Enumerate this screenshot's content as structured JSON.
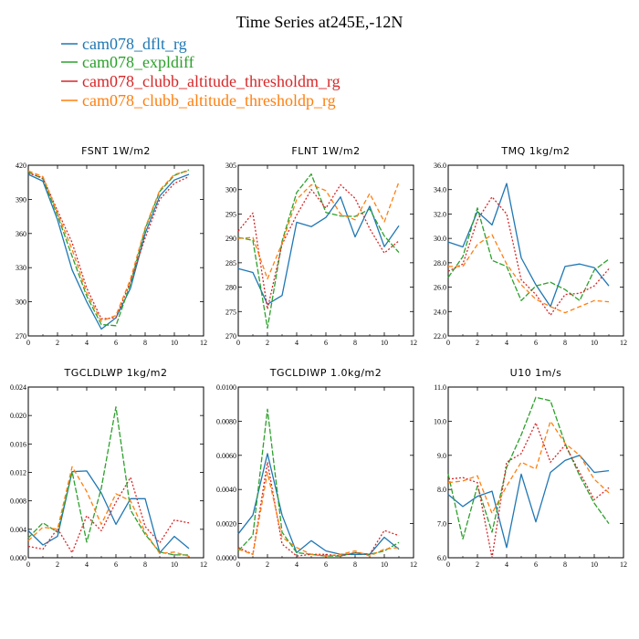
{
  "figure": {
    "title": "Time Series at245E,-12N",
    "legend": [
      {
        "label": "cam078_dflt_rg",
        "color": "#1f77b4"
      },
      {
        "label": "cam078_expldiff",
        "color": "#2ca02c"
      },
      {
        "label": "cam078_clubb_altitude_thresholdm_rg",
        "color": "#d62728"
      },
      {
        "label": "cam078_clubb_altitude_thresholdp_rg",
        "color": "#ff7f0e"
      }
    ]
  },
  "chart_data": [
    {
      "type": "line",
      "title": "FSNT   1W/m2",
      "x": [
        0,
        1,
        2,
        3,
        4,
        5,
        6,
        7,
        8,
        9,
        10,
        11
      ],
      "xlim": [
        0,
        12
      ],
      "xticks": [
        "0",
        "2",
        "4",
        "6",
        "8",
        "10",
        "12"
      ],
      "ylim": [
        270,
        420
      ],
      "yticks": [
        "270",
        "300",
        "330",
        "360",
        "390",
        "420"
      ],
      "series": [
        {
          "name": "cam078_dflt_rg",
          "values": [
            412,
            406,
            372,
            328,
            300,
            276,
            286,
            312,
            360,
            393,
            407,
            412
          ]
        },
        {
          "name": "cam078_expldiff",
          "values": [
            414,
            408,
            376,
            340,
            305,
            280,
            279,
            316,
            364,
            397,
            411,
            416
          ]
        },
        {
          "name": "cam078_clubb_altitude_thresholdm_rg",
          "values": [
            413,
            409,
            380,
            352,
            312,
            285,
            286,
            318,
            356,
            390,
            404,
            410
          ]
        },
        {
          "name": "cam078_clubb_altitude_thresholdp_rg",
          "values": [
            415,
            410,
            378,
            346,
            308,
            283,
            288,
            320,
            365,
            398,
            412,
            415
          ]
        }
      ]
    },
    {
      "type": "line",
      "title": "FLNT   1W/m2",
      "x": [
        0,
        1,
        2,
        3,
        4,
        5,
        6,
        7,
        8,
        9,
        10,
        11
      ],
      "xlim": [
        0,
        12
      ],
      "xticks": [
        "0",
        "2",
        "4",
        "6",
        "8",
        "10",
        "12"
      ],
      "ylim": [
        270,
        305
      ],
      "yticks": [
        "270",
        "275",
        "280",
        "285",
        "290",
        "295",
        "300",
        "305"
      ],
      "series": [
        {
          "name": "cam078_dflt_rg",
          "values": [
            283.8,
            283,
            276.5,
            278.3,
            293.3,
            292.4,
            294.3,
            298.5,
            290.3,
            296.6,
            288.3,
            292.6
          ]
        },
        {
          "name": "cam078_expldiff",
          "values": [
            290.2,
            289.6,
            271.6,
            289.4,
            299.4,
            303.2,
            295.3,
            294.6,
            294.5,
            296,
            290.5,
            287.1
          ]
        },
        {
          "name": "cam078_clubb_altitude_thresholdm_rg",
          "values": [
            291.5,
            295.2,
            275.5,
            288.8,
            294.8,
            300,
            296.2,
            301,
            298.2,
            292,
            287,
            289.5
          ]
        },
        {
          "name": "cam078_clubb_altitude_thresholdp_rg",
          "values": [
            290,
            290.2,
            281.7,
            289,
            298,
            301,
            299.8,
            295,
            293.8,
            299.2,
            293.4,
            301.6
          ]
        }
      ]
    },
    {
      "type": "line",
      "title": "TMQ   1kg/m2",
      "x": [
        0,
        1,
        2,
        3,
        4,
        5,
        6,
        7,
        8,
        9,
        10,
        11
      ],
      "xlim": [
        0,
        12
      ],
      "xticks": [
        "0",
        "2",
        "4",
        "6",
        "8",
        "10",
        "12"
      ],
      "ylim": [
        22,
        36
      ],
      "yticks": [
        "22.0",
        "24.0",
        "26.0",
        "28.0",
        "30.0",
        "32.0",
        "34.0",
        "36.0"
      ],
      "series": [
        {
          "name": "cam078_dflt_rg",
          "values": [
            29.7,
            29.3,
            32.2,
            31.1,
            34.5,
            28.4,
            26.2,
            24.4,
            27.7,
            27.9,
            27.6,
            26.1
          ]
        },
        {
          "name": "cam078_expldiff",
          "values": [
            26.8,
            28.5,
            32.5,
            28.2,
            27.7,
            24.9,
            26.1,
            26.4,
            25.8,
            24.9,
            27.4,
            28.3
          ]
        },
        {
          "name": "cam078_clubb_altitude_thresholdm_rg",
          "values": [
            27.3,
            27.9,
            31.5,
            33.4,
            32,
            26.6,
            25.4,
            23.7,
            25.4,
            25.5,
            26.1,
            27.5
          ]
        },
        {
          "name": "cam078_clubb_altitude_thresholdp_rg",
          "values": [
            27.7,
            27.7,
            29.5,
            30.3,
            27.9,
            26.2,
            25,
            24.4,
            23.9,
            24.4,
            24.9,
            24.8
          ]
        }
      ]
    },
    {
      "type": "line",
      "title": "TGCLDLWP   1kg/m2",
      "x": [
        0,
        1,
        2,
        3,
        4,
        5,
        6,
        7,
        8,
        9,
        10,
        11
      ],
      "xlim": [
        0,
        12
      ],
      "xticks": [
        "0",
        "2",
        "4",
        "6",
        "8",
        "10",
        "12"
      ],
      "ylim": [
        0,
        0.024
      ],
      "yticks": [
        "0.000",
        "0.004",
        "0.008",
        "0.012",
        "0.016",
        "0.020",
        "0.024"
      ],
      "series": [
        {
          "name": "cam078_dflt_rg",
          "values": [
            0.0038,
            0.0018,
            0.003,
            0.0121,
            0.0122,
            0.0091,
            0.0047,
            0.0083,
            0.0083,
            0.0007,
            0.003,
            0.0013
          ]
        },
        {
          "name": "cam078_expldiff",
          "values": [
            0.0028,
            0.0049,
            0.0036,
            0.0121,
            0.0022,
            0.0098,
            0.0212,
            0.0067,
            0.0033,
            0.0008,
            0.0004,
            0.0004
          ]
        },
        {
          "name": "cam078_clubb_altitude_thresholdm_rg",
          "values": [
            0.0016,
            0.0012,
            0.0041,
            0.0007,
            0.0059,
            0.0038,
            0.0078,
            0.0113,
            0.0044,
            0.0021,
            0.0053,
            0.0049
          ]
        },
        {
          "name": "cam078_clubb_altitude_thresholdp_rg",
          "values": [
            0.0024,
            0.0043,
            0.004,
            0.0128,
            0.0093,
            0.0047,
            0.009,
            0.008,
            0.0036,
            0.0006,
            0.0008,
            0.0002
          ]
        }
      ]
    },
    {
      "type": "line",
      "title": "TGCLDIWP   1.0kg/m2",
      "x": [
        0,
        1,
        2,
        3,
        4,
        5,
        6,
        7,
        8,
        9,
        10,
        11
      ],
      "xlim": [
        0,
        12
      ],
      "xticks": [
        "0",
        "2",
        "4",
        "6",
        "8",
        "10",
        "12"
      ],
      "ylim": [
        0,
        0.01
      ],
      "yticks": [
        "0.0000",
        "0.0020",
        "0.0040",
        "0.0060",
        "0.0080",
        "0.0100"
      ],
      "series": [
        {
          "name": "cam078_dflt_rg",
          "values": [
            0.0014,
            0.0025,
            0.0061,
            0.0025,
            0.0003,
            0.001,
            0.0004,
            0.0002,
            0.0002,
            0.0002,
            0.0012,
            0.0005
          ]
        },
        {
          "name": "cam078_expldiff",
          "values": [
            0.0004,
            0.0013,
            0.0087,
            0.0015,
            0.0003,
            0.0002,
            0.0001,
            0.0001,
            0.0003,
            0.0002,
            0.0004,
            0.0009
          ]
        },
        {
          "name": "cam078_clubb_altitude_thresholdm_rg",
          "values": [
            0.0006,
            0.0002,
            0.0056,
            0.0008,
            0.0001,
            0.0002,
            0.0002,
            0.0001,
            0.0003,
            0.0002,
            0.0016,
            0.0013
          ]
        },
        {
          "name": "cam078_clubb_altitude_thresholdp_rg",
          "values": [
            0.0005,
            0.0002,
            0.005,
            0.0012,
            0.0006,
            0.0002,
            0.0001,
            0.0002,
            0.0004,
            0.0001,
            0.0005,
            0.0006
          ]
        }
      ]
    },
    {
      "type": "line",
      "title": "U10   1m/s",
      "x": [
        0,
        1,
        2,
        3,
        4,
        5,
        6,
        7,
        8,
        9,
        10,
        11
      ],
      "xlim": [
        0,
        12
      ],
      "xticks": [
        "0",
        "2",
        "4",
        "6",
        "8",
        "10",
        "12"
      ],
      "ylim": [
        6,
        11
      ],
      "yticks": [
        "6.0",
        "7.0",
        "8.0",
        "9.0",
        "10.0",
        "11.0"
      ],
      "series": [
        {
          "name": "cam078_dflt_rg",
          "values": [
            7.85,
            7.5,
            7.8,
            7.95,
            6.3,
            8.45,
            7.05,
            8.5,
            8.85,
            9.0,
            8.5,
            8.55
          ]
        },
        {
          "name": "cam078_expldiff",
          "values": [
            8.45,
            6.55,
            8.1,
            6.75,
            8.65,
            9.6,
            10.7,
            10.6,
            9.35,
            8.4,
            7.6,
            7.0
          ]
        },
        {
          "name": "cam078_clubb_altitude_thresholdm_rg",
          "values": [
            8.3,
            8.35,
            8.2,
            6.0,
            8.8,
            9.05,
            9.95,
            8.8,
            9.3,
            8.5,
            7.7,
            8.05
          ]
        },
        {
          "name": "cam078_clubb_altitude_thresholdp_rg",
          "values": [
            8.2,
            8.25,
            8.4,
            7.3,
            8.1,
            8.8,
            8.6,
            10.0,
            9.35,
            9.0,
            8.3,
            7.9
          ]
        }
      ]
    }
  ]
}
